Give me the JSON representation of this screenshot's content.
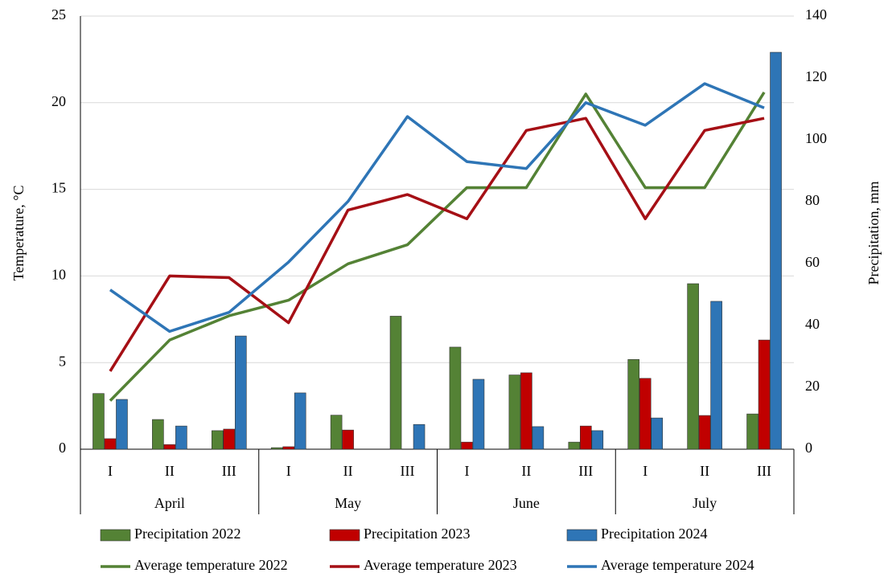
{
  "chart_data": {
    "type": "combo",
    "y_label": "Temperature, °C",
    "y2_label": "Precipitation, mm",
    "categories": [
      "I",
      "II",
      "III",
      "I",
      "II",
      "III",
      "I",
      "II",
      "III",
      "I",
      "II",
      "III"
    ],
    "groups": [
      "April",
      "May",
      "June",
      "July"
    ],
    "ylim": [
      0,
      25
    ],
    "yticks": [
      0,
      5,
      10,
      15,
      20,
      25
    ],
    "y2lim": [
      0,
      140
    ],
    "y2ticks": [
      0,
      20,
      40,
      60,
      80,
      100,
      120,
      140
    ],
    "grid": true,
    "series": [
      {
        "name": "Precipitation 2022",
        "type": "bar",
        "axis": "y2",
        "color": "#548235",
        "values": [
          18,
          9.6,
          6,
          0.5,
          11,
          43,
          33,
          24,
          2.3,
          29,
          53.5,
          11.4
        ]
      },
      {
        "name": "Precipitation 2023",
        "type": "bar",
        "axis": "y2",
        "color": "#c00000",
        "values": [
          3.4,
          1.5,
          6.5,
          0.8,
          6.2,
          0,
          2.3,
          24.7,
          7.5,
          22.9,
          10.9,
          35.3
        ]
      },
      {
        "name": "Precipitation 2024",
        "type": "bar",
        "axis": "y2",
        "color": "#2e75b6",
        "values": [
          16.1,
          7.5,
          36.6,
          18.2,
          0,
          8,
          22.6,
          7.3,
          6,
          10.1,
          47.8,
          128.3
        ]
      },
      {
        "name": "Average temperature 2022",
        "type": "line",
        "axis": "y",
        "color": "#548235",
        "values": [
          2.8,
          6.3,
          7.7,
          8.6,
          10.7,
          11.8,
          15.1,
          15.1,
          20.5,
          15.1,
          15.1,
          20.6
        ]
      },
      {
        "name": "Average temperature 2023",
        "type": "line",
        "axis": "y",
        "color": "#a50f15",
        "values": [
          4.5,
          10.0,
          9.9,
          7.3,
          13.8,
          14.7,
          13.3,
          18.4,
          19.1,
          13.3,
          18.4,
          19.1
        ]
      },
      {
        "name": "Average temperature 2024",
        "type": "line",
        "axis": "y",
        "color": "#2e75b6",
        "values": [
          9.2,
          6.8,
          7.9,
          10.8,
          14.3,
          19.2,
          16.6,
          16.2,
          20.0,
          18.7,
          21.1,
          19.7
        ]
      }
    ]
  }
}
